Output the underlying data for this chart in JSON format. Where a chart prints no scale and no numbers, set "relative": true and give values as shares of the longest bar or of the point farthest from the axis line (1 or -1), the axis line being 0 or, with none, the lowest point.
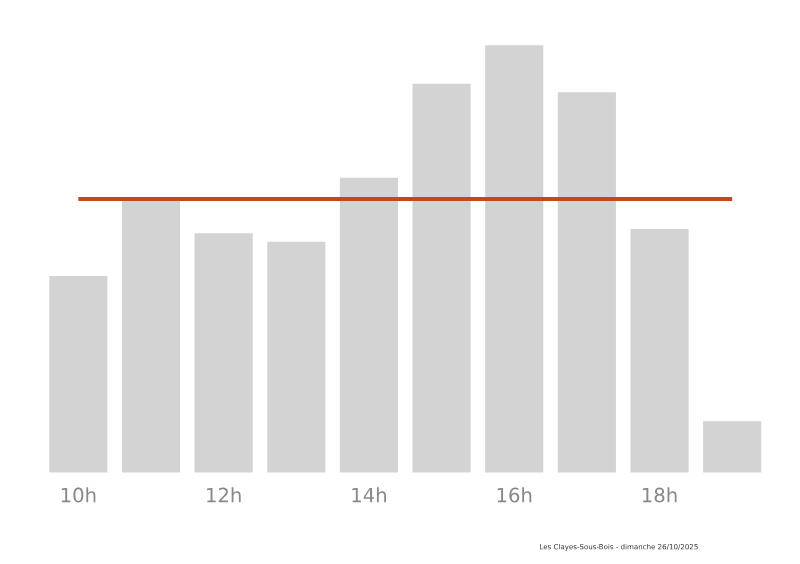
{
  "chart_data": {
    "type": "bar",
    "relative": true,
    "categories": [
      "10h",
      null,
      "12h",
      null,
      "14h",
      null,
      "16h",
      null,
      "18h",
      null
    ],
    "values": [
      0.46,
      0.645,
      0.56,
      0.54,
      0.69,
      0.91,
      1,
      0.89,
      0.57,
      0.12
    ],
    "color": "#d3d3d3",
    "ref_lines": [
      {
        "axis": "y",
        "value": 0.64,
        "color": "#c8461a"
      }
    ],
    "annotations": [
      "Les Clayes-Sous-Bois - dimanche 26/10/2025"
    ]
  }
}
